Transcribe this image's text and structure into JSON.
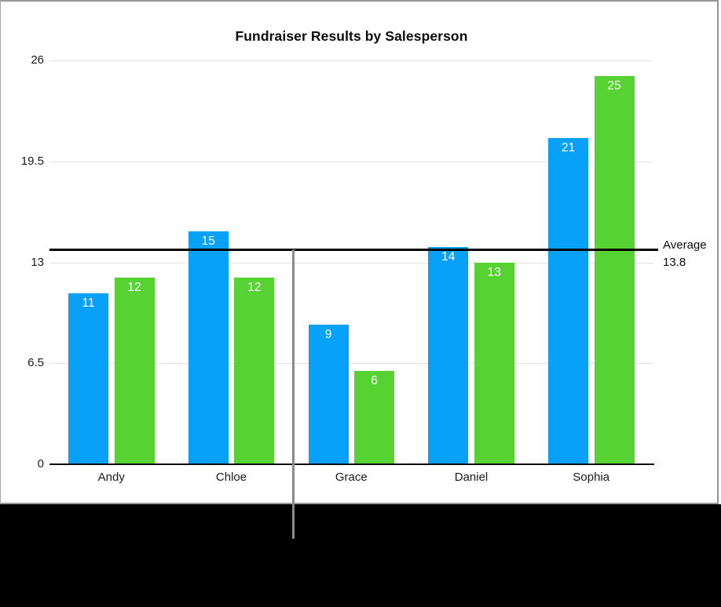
{
  "figure": {
    "panel_background": "#ffffff",
    "caption_area_color": "#000000",
    "frame_color": "#969696",
    "callout_line_color": "#8a8a8a"
  },
  "chart_data": {
    "type": "bar",
    "title": "Fundraiser Results by Salesperson",
    "categories": [
      "Andy",
      "Chloe",
      "Grace",
      "Daniel",
      "Sophia"
    ],
    "series": [
      {
        "name": "blue",
        "color": "#08A1F9",
        "values": [
          11,
          15,
          9,
          14,
          21
        ]
      },
      {
        "name": "green",
        "color": "#57D233",
        "values": [
          12,
          12,
          6,
          13,
          25
        ]
      }
    ],
    "y_ticks": [
      {
        "label": "0",
        "value": 0
      },
      {
        "label": "6.5",
        "value": 6.5
      },
      {
        "label": "13",
        "value": 13
      },
      {
        "label": "19.5",
        "value": 19.5
      },
      {
        "label": "26",
        "value": 26
      }
    ],
    "ylim": [
      0,
      26
    ],
    "grid": true,
    "legend": "none",
    "value_label_color": "#ffffff",
    "gridline_color": "#e2e2e2",
    "axis_color": "#0d0d0d",
    "average_line": {
      "value": 13.8,
      "label_line1": "Average",
      "label_line2": "13.8",
      "color": "#000000"
    }
  }
}
